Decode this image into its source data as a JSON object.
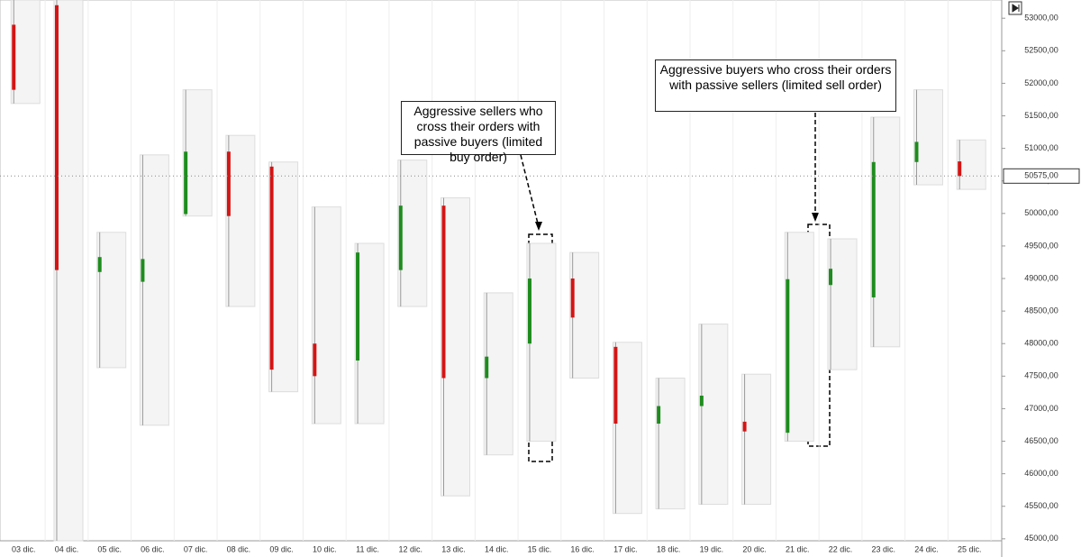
{
  "chart_data": {
    "type": "candlestick",
    "categories": [
      "03 dic.",
      "04 dic.",
      "05 dic.",
      "06 dic.",
      "07 dic.",
      "08 dic.",
      "09 dic.",
      "10 dic.",
      "11 dic.",
      "12 dic.",
      "13 dic.",
      "14 dic.",
      "15 dic.",
      "16 dic.",
      "17 dic.",
      "18 dic.",
      "19 dic.",
      "20 dic.",
      "21 dic.",
      "22 dic.",
      "23 dic.",
      "24 dic.",
      "25 dic."
    ],
    "open": [
      52900,
      53200,
      49100,
      48950,
      49990,
      50950,
      50720,
      48000,
      47740,
      49130,
      50120,
      47470,
      48000,
      49000,
      47950,
      46770,
      47040,
      46800,
      46630,
      48900,
      48710,
      50790,
      50800
    ],
    "high": [
      53280,
      53280,
      49710,
      50900,
      51900,
      51200,
      50790,
      50100,
      49540,
      50820,
      50240,
      48780,
      49540,
      49400,
      48020,
      47470,
      48300,
      47530,
      49710,
      49610,
      51480,
      51900,
      51130
    ],
    "low": [
      51690,
      44970,
      47630,
      46745,
      49960,
      48570,
      47260,
      46770,
      46770,
      48570,
      45660,
      46290,
      46500,
      47470,
      45390,
      45460,
      45530,
      45530,
      46500,
      47600,
      47950,
      50440,
      50370
    ],
    "close": [
      51900,
      49130,
      49330,
      49300,
      50950,
      49960,
      47600,
      47500,
      49400,
      50120,
      47470,
      47800,
      49000,
      48400,
      46770,
      47040,
      47200,
      46650,
      48990,
      49150,
      50790,
      51100,
      50575
    ],
    "up_color": "#1e8c1e",
    "down_color": "#d41414",
    "ylim": [
      44970,
      53280
    ],
    "yticks": [
      {
        "value": 45000,
        "label": "45000,00"
      },
      {
        "value": 45500,
        "label": "45500,00"
      },
      {
        "value": 46000,
        "label": "46000,00"
      },
      {
        "value": 46500,
        "label": "46500,00"
      },
      {
        "value": 47000,
        "label": "47000,00"
      },
      {
        "value": 47500,
        "label": "47500,00"
      },
      {
        "value": 48000,
        "label": "48000,00"
      },
      {
        "value": 48500,
        "label": "48500,00"
      },
      {
        "value": 49000,
        "label": "49000,00"
      },
      {
        "value": 49500,
        "label": "49500,00"
      },
      {
        "value": 50000,
        "label": "50000,00"
      },
      {
        "value": 50500,
        "label": "50500,00"
      },
      {
        "value": 51000,
        "label": "51000,00"
      },
      {
        "value": 51500,
        "label": "51500,00"
      },
      {
        "value": 52000,
        "label": "52000,00"
      },
      {
        "value": 52500,
        "label": "52500,00"
      },
      {
        "value": 53000,
        "label": "53000,00"
      }
    ],
    "last_price": {
      "value": 50575,
      "label": "50575,00"
    },
    "annotations": [
      "Aggressive sellers who cross their orders with passive buyers (limited buy order)",
      "Aggressive buyers who cross their orders with passive sellers (limited sell order)"
    ]
  }
}
